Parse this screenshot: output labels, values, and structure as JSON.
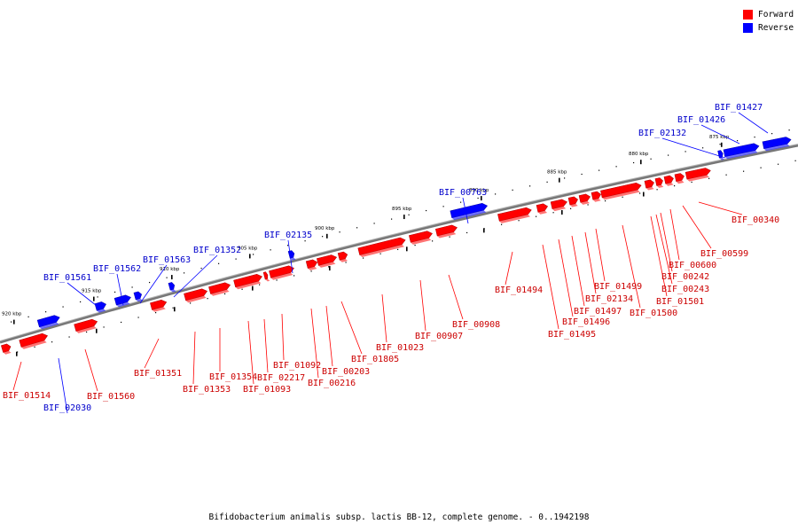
{
  "caption": "Bifidobacterium animalis subsp. lactis BB-12, complete genome. - 0..1942198",
  "legend": [
    {
      "label": "Forward",
      "color": "#ff0000"
    },
    {
      "label": "Reverse",
      "color": "#0000ff"
    }
  ],
  "colors": {
    "forward": "#ff0000",
    "forward_label": "#cc0000",
    "reverse": "#0000ff",
    "reverse_label": "#0000cc",
    "backbone": "#707070"
  },
  "tick_labels": [
    "875 kbp",
    "880 kbp",
    "885 kbp",
    "890 kbp",
    "895 kbp",
    "900 kbp",
    "905 kbp",
    "910 kbp",
    "915 kbp",
    "920 kbp"
  ],
  "reverse_genes": [
    "BIF_01427",
    "BIF_01426",
    "BIF_02132",
    "BIF_00763",
    "BIF_02135",
    "BIF_01352",
    "BIF_01563",
    "BIF_01562",
    "BIF_01561",
    "BIF_02030"
  ],
  "forward_genes": [
    "BIF_00340",
    "BIF_00599",
    "BIF_00600",
    "BIF_00242",
    "BIF_00243",
    "BIF_01501",
    "BIF_01500",
    "BIF_01499",
    "BIF_02134",
    "BIF_01497",
    "BIF_01496",
    "BIF_01495",
    "BIF_01494",
    "BIF_00908",
    "BIF_00907",
    "BIF_01023",
    "BIF_01805",
    "BIF_00203",
    "BIF_00216",
    "BIF_01092",
    "BIF_02217",
    "BIF_01093",
    "BIF_01354",
    "BIF_01353",
    "BIF_01351",
    "BIF_01560",
    "BIF_01514"
  ]
}
